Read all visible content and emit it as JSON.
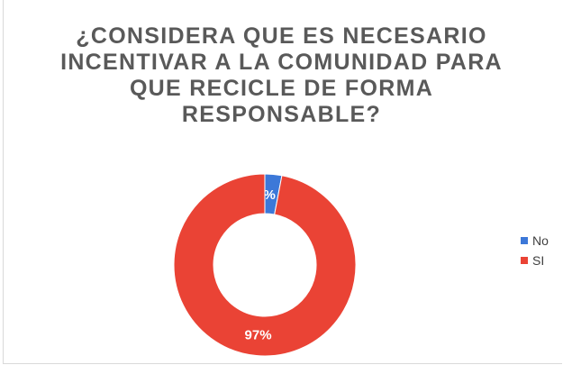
{
  "chart_data": {
    "type": "pie",
    "donut": true,
    "title": "¿CONSIDERA QUE ES NECESARIO INCENTIVAR A LA COMUNIDAD PARA QUE RECICLE DE FORMA RESPONSABLE?",
    "categories": [
      "No",
      "SI"
    ],
    "values": [
      3,
      97
    ],
    "labels": [
      "3%",
      "97%"
    ],
    "colors": [
      "#3c78d8",
      "#ea4335"
    ],
    "legend_position": "right"
  }
}
